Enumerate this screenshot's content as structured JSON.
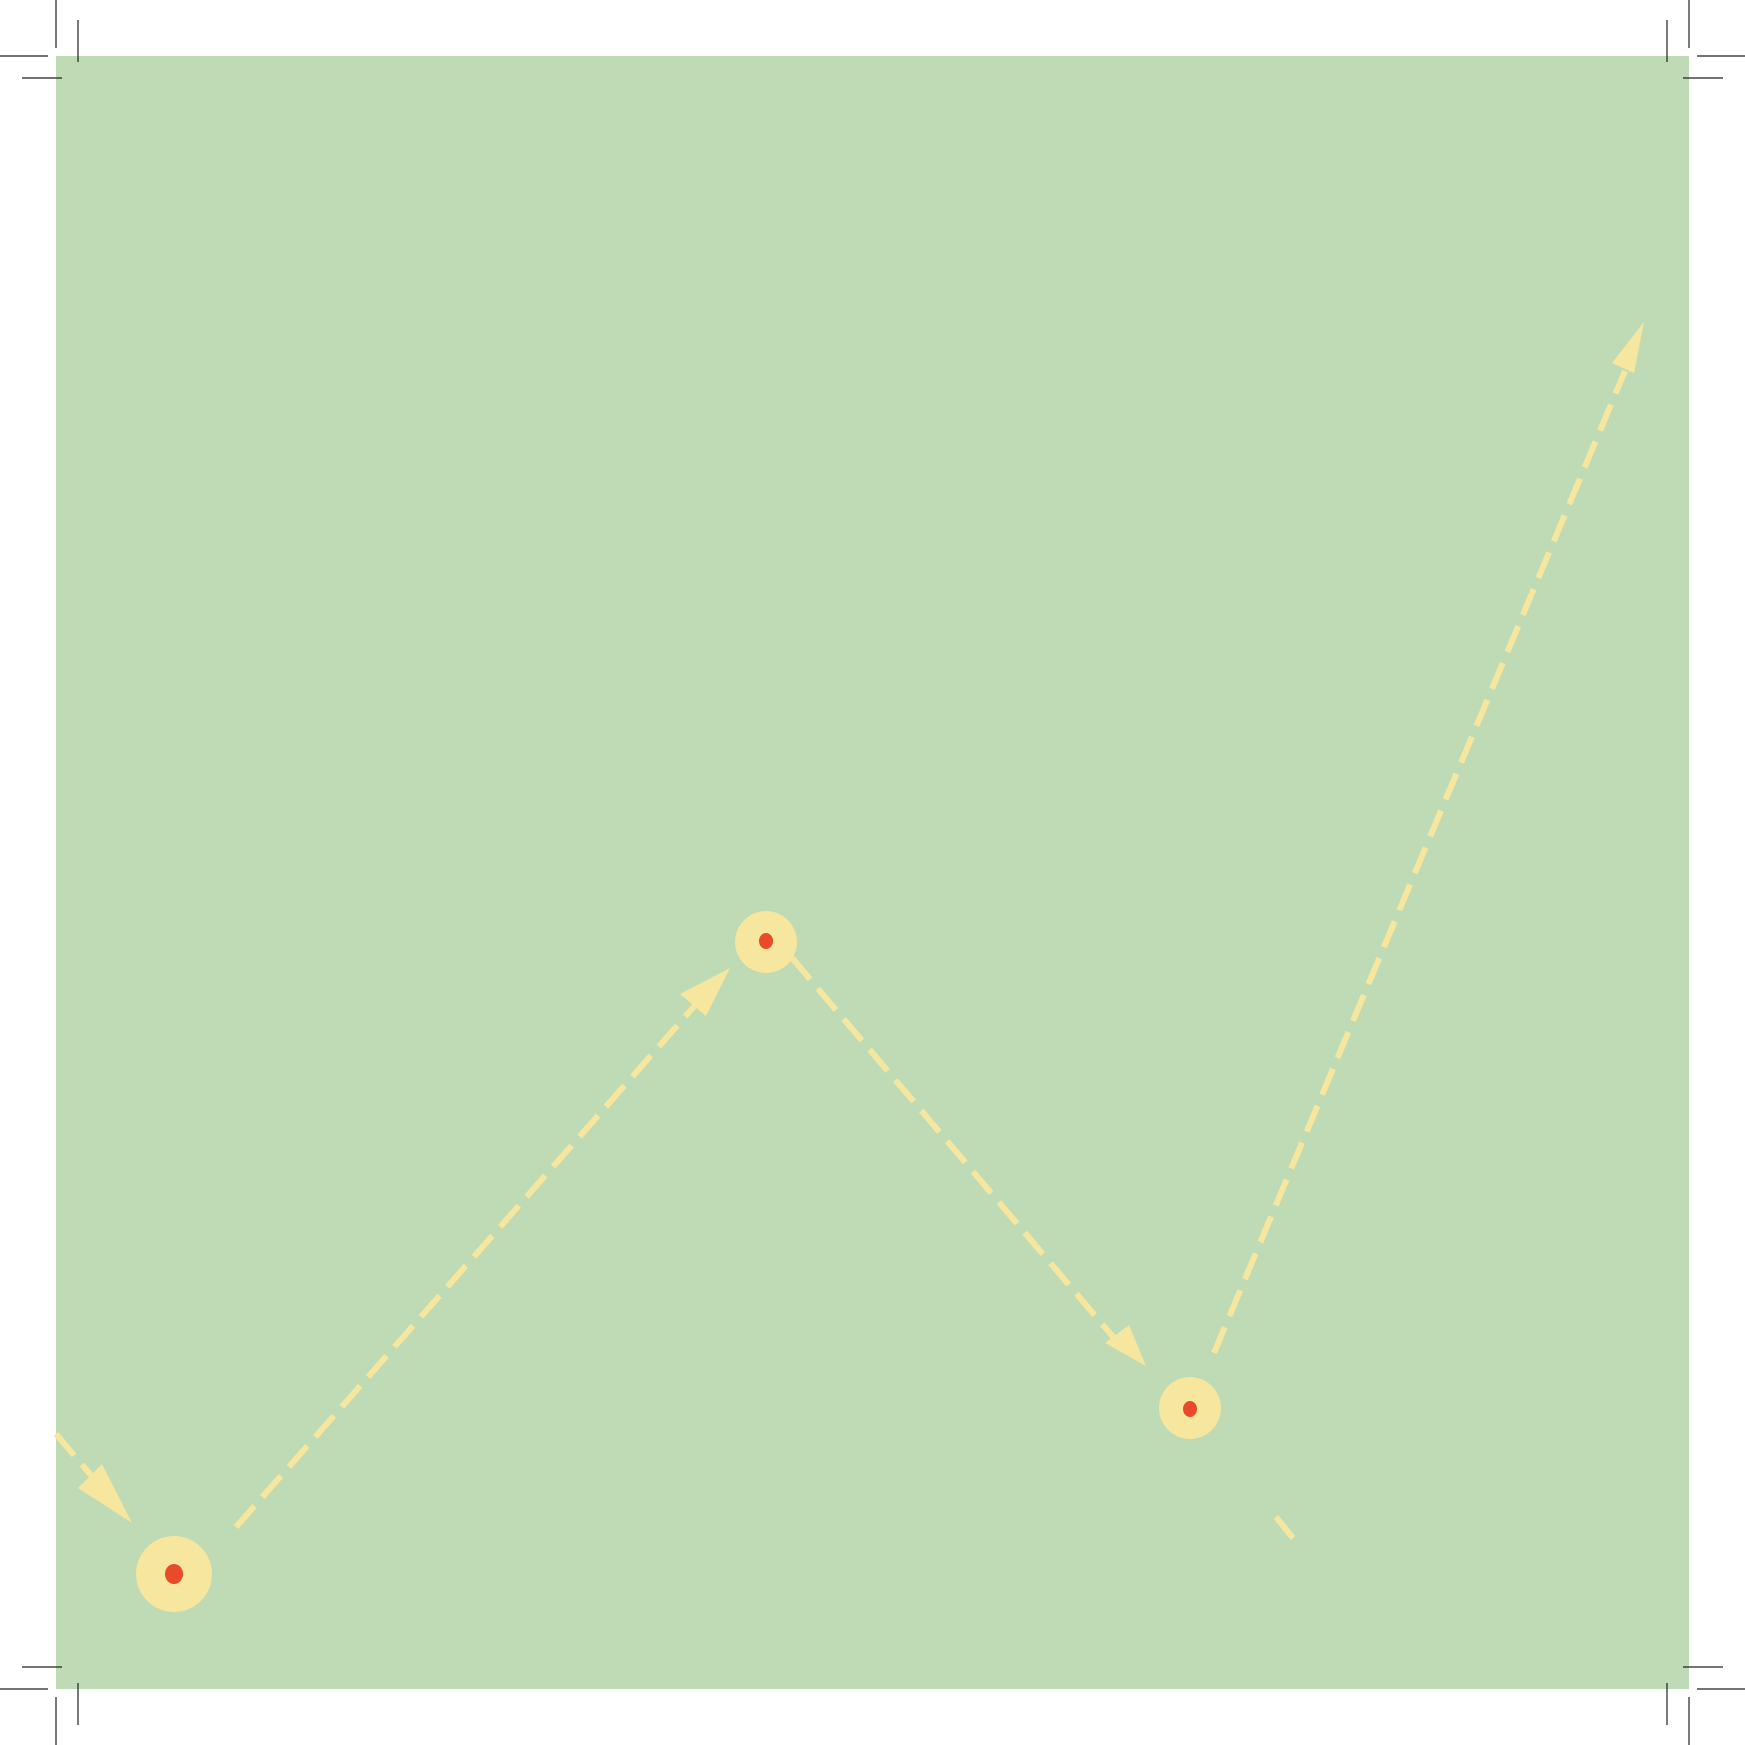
{
  "colors": {
    "page": "#ffffff",
    "panel": "#bedbb5",
    "path": "#f7e69d",
    "node_fill": "#f7e69d",
    "node_center": "#e84a2a",
    "crop_marks": "#231f20"
  },
  "diagram": {
    "style": "dashed-arrow-path",
    "node_count": 3,
    "segments": [
      {
        "from": "left-edge",
        "to": "node-1",
        "arrowhead": "end"
      },
      {
        "from": "node-1",
        "to": "node-2",
        "arrowhead": "end"
      },
      {
        "from": "node-2",
        "to": "node-3",
        "arrowhead": "end"
      },
      {
        "from": "node-3",
        "to": "top-right",
        "arrowhead": "end"
      },
      {
        "from": "node-3",
        "to": "bottom-stub",
        "arrowhead": "none"
      }
    ]
  }
}
